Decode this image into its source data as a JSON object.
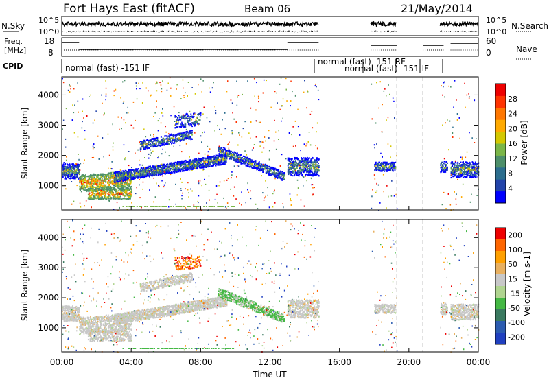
{
  "header": {
    "title": "Fort Hays East (fitACF)",
    "beam": "Beam 06",
    "date": "21/May/2014"
  },
  "strip_labels": {
    "nsky": "N.Sky",
    "nsearch": "N.Search",
    "freq_line1": "Freq.",
    "freq_line2": "[MHz]",
    "nave": "Nave",
    "cpid": "CPID"
  },
  "strip_ticks": {
    "noise_left": [
      "10^5",
      "10^0"
    ],
    "noise_right": [
      "10^5",
      "10^0"
    ],
    "freq_left": [
      "18",
      "8"
    ],
    "nave_right": [
      "60",
      "0"
    ]
  },
  "cpid_labels": [
    "normal (fast) -151 IF",
    "normal (fast) -151 RF",
    "normal (fast) -151 IF"
  ],
  "colors": {
    "power": [
      "#0000ff",
      "#2244aa",
      "#2c6e8e",
      "#4d8f6a",
      "#7ab648",
      "#d4c800",
      "#ffaa00",
      "#ff7700",
      "#ff3300",
      "#ee0000"
    ],
    "velocity": [
      "#2040c0",
      "#2c5cb0",
      "#3a7a60",
      "#44b844",
      "#b0d490",
      "#c8c8c8",
      "#e8b060",
      "#ffa000",
      "#ff6600",
      "#ee0000"
    ]
  },
  "chart_data": [
    {
      "type": "heatmap",
      "ylabel": "Slant Range [km]",
      "colorbar_label": "Power [dB]",
      "colorbar_ticks": [
        "4",
        "8",
        "12",
        "16",
        "20",
        "24",
        "28"
      ],
      "y_ticks": [
        "1000",
        "2000",
        "3000",
        "4000"
      ],
      "ylim": [
        200,
        4600
      ]
    },
    {
      "type": "heatmap",
      "ylabel": "Slant Range [km]",
      "colorbar_label": "Velocity [m s-1]",
      "colorbar_ticks": [
        "200",
        "100",
        "50",
        "15",
        "-15",
        "-50",
        "-100",
        "-200"
      ],
      "y_ticks": [
        "1000",
        "2000",
        "3000",
        "4000"
      ],
      "ylim": [
        200,
        4600
      ]
    }
  ],
  "x_axis": {
    "label": "Time UT",
    "ticks": [
      "00:00",
      "04:00",
      "08:00",
      "12:00",
      "16:00",
      "20:00",
      "00:00"
    ],
    "xlim": [
      0,
      24
    ]
  }
}
